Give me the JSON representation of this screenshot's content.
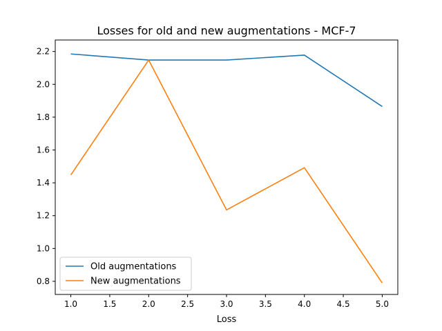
{
  "chart_data": {
    "type": "line",
    "title": "Losses for old and new augmentations - MCF-7",
    "xlabel": "Loss",
    "ylabel": "",
    "x": [
      1,
      2,
      3,
      4,
      5
    ],
    "xlim": [
      0.8,
      5.2
    ],
    "ylim": [
      0.72,
      2.27
    ],
    "x_ticks": [
      1.0,
      1.5,
      2.0,
      2.5,
      3.0,
      3.5,
      4.0,
      4.5,
      5.0
    ],
    "x_tick_labels": [
      "1.0",
      "1.5",
      "2.0",
      "2.5",
      "3.0",
      "3.5",
      "4.0",
      "4.5",
      "5.0"
    ],
    "y_ticks": [
      0.8,
      1.0,
      1.2,
      1.4,
      1.6,
      1.8,
      2.0,
      2.2
    ],
    "y_tick_labels": [
      "0.8",
      "1.0",
      "1.2",
      "1.4",
      "1.6",
      "1.8",
      "2.0",
      "2.2"
    ],
    "grid": false,
    "legend_position": "lower-left",
    "series": [
      {
        "name": "Old augmentations",
        "color": "#1f77b4",
        "values": [
          2.185,
          2.148,
          2.148,
          2.178,
          1.865
        ]
      },
      {
        "name": "New augmentations",
        "color": "#ff7f0e",
        "values": [
          1.448,
          2.148,
          1.235,
          1.492,
          0.79
        ]
      }
    ]
  }
}
